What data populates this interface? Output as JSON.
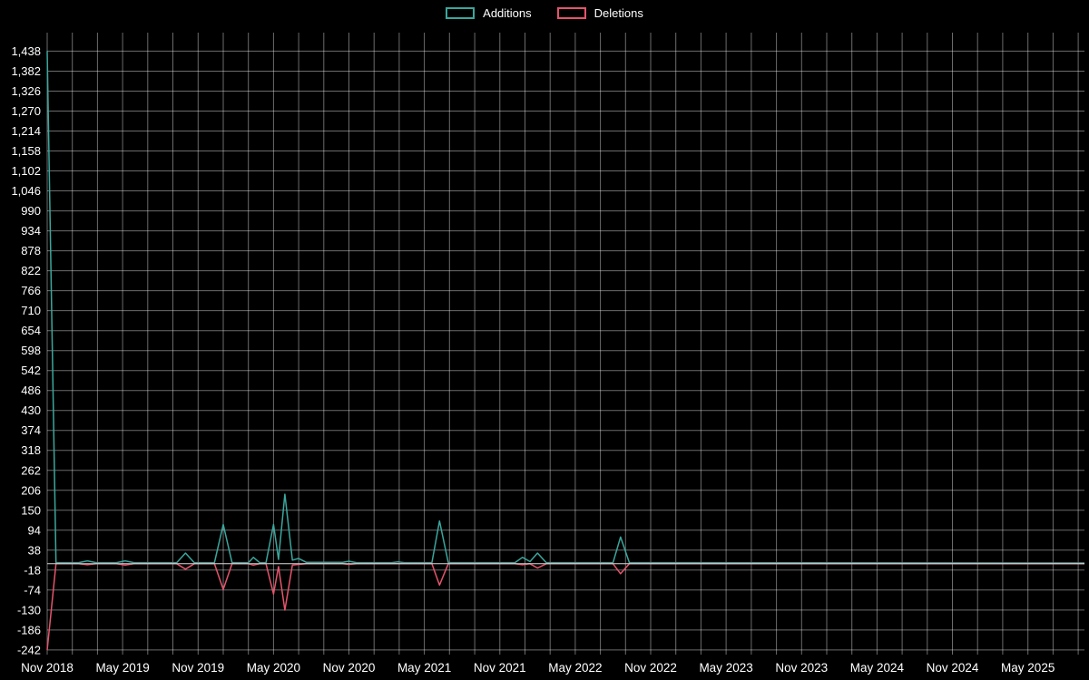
{
  "legend": {
    "items": [
      {
        "label": "Additions",
        "color": "#3aa79d"
      },
      {
        "label": "Deletions",
        "color": "#e4546c"
      }
    ]
  },
  "chart_data": {
    "type": "line",
    "title": "",
    "xlabel": "",
    "ylabel": "",
    "background": "#000000",
    "text_color": "#ffffff",
    "zero_line_color": "#d9d9d9",
    "grid": {
      "color": "rgba(255,255,255,0.42)",
      "x_step_months": 2
    },
    "legend_position": "top-center",
    "x_unit": "months since Nov 2018",
    "xlim": [
      0,
      82.5
    ],
    "ylim": [
      -255,
      1490
    ],
    "y_ticks": [
      -242,
      -186,
      -130,
      -74,
      -18,
      38,
      94,
      150,
      206,
      262,
      318,
      374,
      430,
      486,
      542,
      598,
      654,
      710,
      766,
      822,
      878,
      934,
      990,
      1046,
      1102,
      1158,
      1214,
      1270,
      1326,
      1382,
      1438
    ],
    "x_ticks": [
      {
        "month": 0,
        "label": "Nov 2018"
      },
      {
        "month": 6,
        "label": "May 2019"
      },
      {
        "month": 12,
        "label": "Nov 2019"
      },
      {
        "month": 18,
        "label": "May 2020"
      },
      {
        "month": 24,
        "label": "Nov 2020"
      },
      {
        "month": 30,
        "label": "May 2021"
      },
      {
        "month": 36,
        "label": "Nov 2021"
      },
      {
        "month": 42,
        "label": "May 2022"
      },
      {
        "month": 48,
        "label": "Nov 2022"
      },
      {
        "month": 54,
        "label": "May 2023"
      },
      {
        "month": 60,
        "label": "Nov 2023"
      },
      {
        "month": 66,
        "label": "May 2024"
      },
      {
        "month": 72,
        "label": "Nov 2024"
      },
      {
        "month": 78,
        "label": "May 2025"
      }
    ],
    "x": [
      0,
      0.7,
      2.5,
      3.2,
      3.9,
      5.5,
      6.2,
      6.9,
      10.3,
      11.0,
      11.7,
      13.3,
      14.0,
      14.7,
      16.0,
      16.4,
      16.9,
      17.4,
      18.0,
      18.4,
      18.9,
      19.5,
      20.0,
      20.6,
      23.5,
      24.0,
      24.6,
      27.4,
      27.9,
      28.4,
      30.6,
      31.2,
      31.9,
      37.2,
      37.8,
      38.4,
      39.0,
      39.7,
      45.0,
      45.6,
      46.3,
      82.5
    ],
    "series": [
      {
        "name": "Additions",
        "color": "#3aa79d",
        "values": [
          1438,
          3,
          3,
          8,
          3,
          3,
          8,
          3,
          3,
          30,
          3,
          3,
          110,
          3,
          3,
          18,
          3,
          3,
          110,
          12,
          195,
          10,
          15,
          4,
          4,
          7,
          3,
          3,
          5,
          3,
          3,
          120,
          3,
          3,
          18,
          6,
          30,
          3,
          3,
          75,
          3,
          2
        ]
      },
      {
        "name": "Deletions",
        "color": "#e4546c",
        "values": [
          -242,
          0,
          0,
          -3,
          0,
          0,
          -4,
          0,
          0,
          -15,
          0,
          0,
          -72,
          0,
          0,
          -4,
          0,
          0,
          -85,
          -8,
          -130,
          -4,
          -2,
          0,
          0,
          -2,
          0,
          0,
          0,
          0,
          0,
          -60,
          0,
          0,
          -3,
          0,
          -12,
          0,
          0,
          -28,
          0,
          0
        ]
      }
    ]
  }
}
